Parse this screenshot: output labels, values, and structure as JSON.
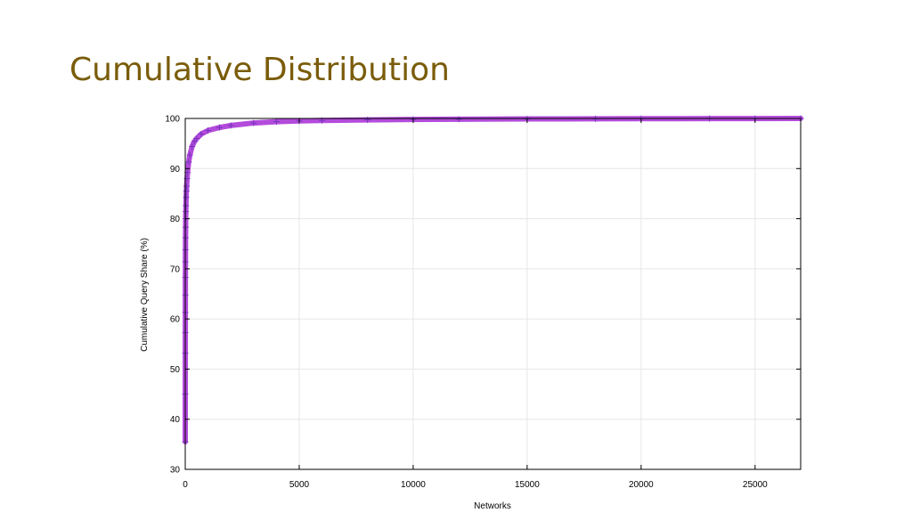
{
  "slide": {
    "title": "Cumulative Distribution"
  },
  "colors": {
    "title": "#7a5c0a",
    "series_fill": "#b34bdb",
    "series_marker": "#6a2fb8",
    "grid": "#e6e6e6",
    "axis": "#000000"
  },
  "chart_data": {
    "type": "line",
    "title": "",
    "xlabel": "Networks",
    "ylabel": "Cumulative Query Share (%)",
    "xlim": [
      0,
      27000
    ],
    "ylim": [
      30,
      100
    ],
    "x_ticks": [
      0,
      5000,
      10000,
      15000,
      20000,
      25000
    ],
    "y_ticks": [
      30,
      40,
      50,
      60,
      70,
      80,
      90,
      100
    ],
    "x_tick_labels": [
      "0",
      "5000",
      "10000",
      "15000",
      "20000",
      "25000"
    ],
    "y_tick_labels": [
      "30",
      "40",
      "50",
      "60",
      "70",
      "80",
      "90",
      "100"
    ],
    "grid": true,
    "legend": "none",
    "marker": "+",
    "series": [
      {
        "x": [
          0,
          1,
          2,
          3,
          4,
          5,
          6,
          8,
          10,
          13,
          16,
          20,
          25,
          30,
          40,
          50,
          60,
          80,
          100,
          150,
          200,
          300,
          400,
          500,
          700,
          1000,
          1500,
          2000,
          3000,
          4000,
          5000,
          6000,
          8000,
          10000,
          12000,
          15000,
          18000,
          20000,
          23000,
          25000,
          27000
        ],
        "y": [
          35.5,
          45.0,
          53.2,
          57.3,
          61.3,
          64.8,
          68.3,
          71.4,
          73.8,
          76.2,
          78.3,
          80.0,
          81.4,
          82.6,
          84.3,
          85.5,
          86.5,
          88.0,
          89.2,
          91.3,
          92.7,
          94.4,
          95.4,
          96.0,
          96.9,
          97.6,
          98.2,
          98.6,
          99.1,
          99.35,
          99.5,
          99.6,
          99.72,
          99.8,
          99.85,
          99.9,
          99.93,
          99.95,
          99.97,
          99.98,
          100.0
        ]
      }
    ]
  }
}
